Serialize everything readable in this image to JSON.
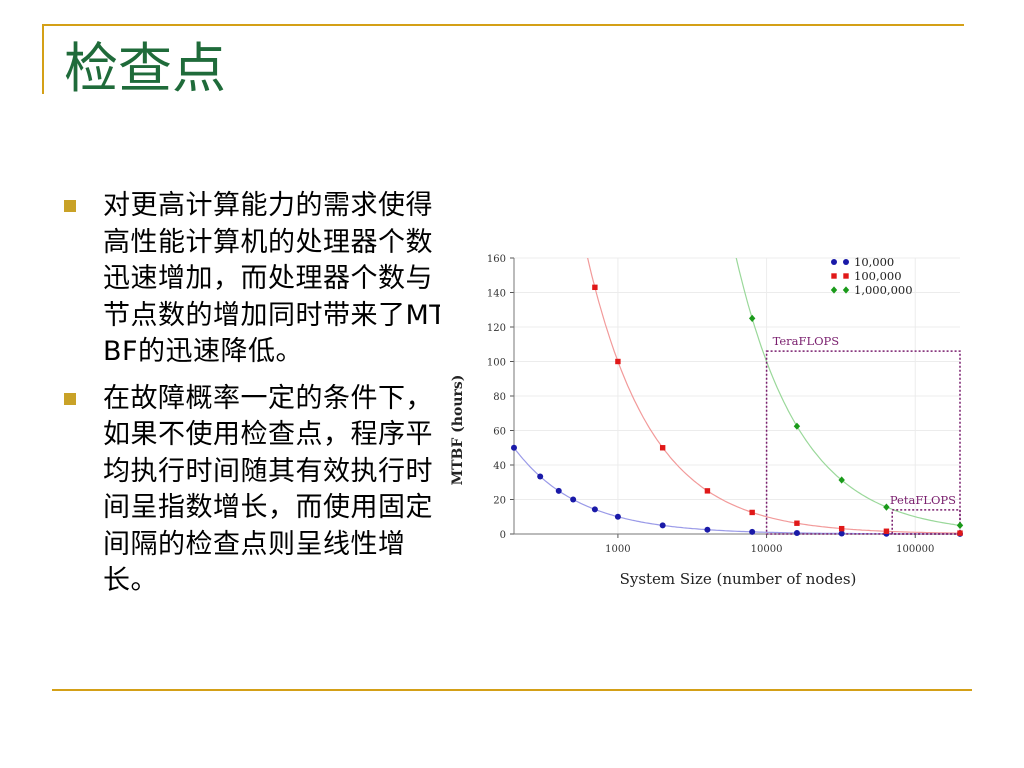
{
  "slide": {
    "title": "检查点",
    "bullets": [
      "对更高计算能力的需求使得高性能计算机的处理器个数迅速增加，而处理器个数与节点数的增加同时带来了MTBF的迅速降低。",
      "在故障概率一定的条件下，如果不使用检查点，程序平均执行时间随其有效执行时间呈指数增长，而使用固定间隔的检查点则呈线性增长。"
    ]
  },
  "colors": {
    "title": "#1f6b3a",
    "rule": "#d4a017",
    "bullet": "#c9a227",
    "annotation": "#7a1f6e"
  },
  "chart_data": {
    "type": "scatter",
    "xlabel": "System Size (number of nodes)",
    "ylabel": "MTBF (hours)",
    "x_scale": "log",
    "xlim": [
      200,
      200000
    ],
    "ylim": [
      0,
      160
    ],
    "x_ticks": [
      1000,
      10000,
      100000
    ],
    "x_tick_labels": [
      "1000",
      "10000",
      "100000"
    ],
    "y_ticks": [
      0,
      20,
      40,
      60,
      80,
      100,
      120,
      140,
      160
    ],
    "y_tick_labels": [
      "0",
      "20",
      "40",
      "60",
      "80",
      "100",
      "120",
      "140",
      "160"
    ],
    "legend_position": "top-right",
    "series": [
      {
        "name": "10,000",
        "color": "#1a1aa8",
        "curve_color": "#9a9ae8",
        "marker": "circle",
        "points": [
          [
            200,
            50
          ],
          [
            300,
            33.3
          ],
          [
            400,
            25
          ],
          [
            500,
            20
          ],
          [
            700,
            14.3
          ],
          [
            1000,
            10
          ],
          [
            2000,
            5
          ],
          [
            4000,
            2.5
          ],
          [
            8000,
            1.25
          ],
          [
            16000,
            0.6
          ],
          [
            32000,
            0.3
          ],
          [
            64000,
            0.16
          ],
          [
            200000,
            0.05
          ]
        ]
      },
      {
        "name": "100,000",
        "color": "#e01818",
        "curve_color": "#f29a9a",
        "marker": "square",
        "points": [
          [
            700,
            143
          ],
          [
            1000,
            100
          ],
          [
            2000,
            50
          ],
          [
            4000,
            25
          ],
          [
            8000,
            12.5
          ],
          [
            16000,
            6.25
          ],
          [
            32000,
            3.1
          ],
          [
            64000,
            1.6
          ],
          [
            200000,
            0.5
          ]
        ]
      },
      {
        "name": "1,000,000",
        "color": "#1a9a1a",
        "curve_color": "#9ad89a",
        "marker": "diamond",
        "points": [
          [
            8000,
            125
          ],
          [
            16000,
            62.5
          ],
          [
            32000,
            31.3
          ],
          [
            64000,
            15.6
          ],
          [
            200000,
            5
          ]
        ]
      }
    ],
    "annotations": [
      {
        "label": "TeraFLOPS",
        "x_range": [
          10000,
          200000
        ],
        "y_range": [
          0,
          106
        ]
      },
      {
        "label": "PetaFLOPS",
        "x_range": [
          70000,
          200000
        ],
        "y_range": [
          0,
          14
        ]
      }
    ]
  }
}
